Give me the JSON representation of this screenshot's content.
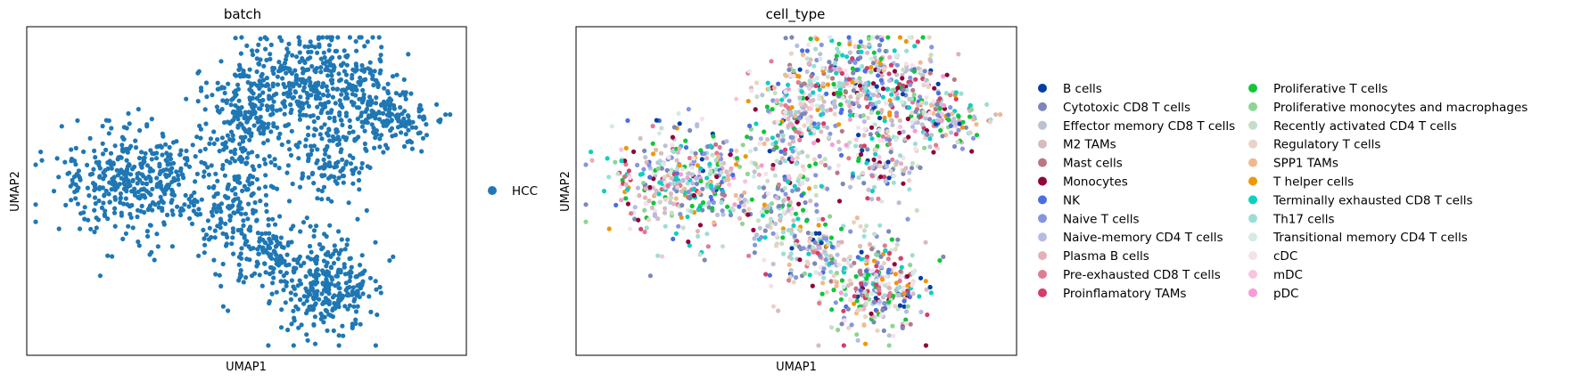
{
  "chart_data": [
    {
      "type": "scatter",
      "title": "batch",
      "xlabel": "UMAP1",
      "ylabel": "UMAP2",
      "grid": false,
      "ticks": false,
      "legend_position": "right",
      "legend": [
        {
          "label": "HCC",
          "color": "#1f77b4"
        }
      ]
    },
    {
      "type": "scatter",
      "title": "cell_type",
      "xlabel": "UMAP1",
      "ylabel": "UMAP2",
      "grid": false,
      "ticks": false,
      "legend_position": "right",
      "legend": [
        {
          "label": "B cells",
          "color": "#023fa5"
        },
        {
          "label": "Cytotoxic CD8 T cells",
          "color": "#7d87b9"
        },
        {
          "label": "Effector memory CD8 T cells",
          "color": "#bec1d4"
        },
        {
          "label": "M2 TAMs",
          "color": "#d6bcc0"
        },
        {
          "label": "Mast cells",
          "color": "#bb7784"
        },
        {
          "label": "Monocytes",
          "color": "#8e063b"
        },
        {
          "label": "NK",
          "color": "#4a6fe3"
        },
        {
          "label": "Naive T cells",
          "color": "#8595e1"
        },
        {
          "label": "Naive-memory CD4 T cells",
          "color": "#b5bbe3"
        },
        {
          "label": "Plasma B cells",
          "color": "#e6afb9"
        },
        {
          "label": "Pre-exhausted CD8 T cells",
          "color": "#e07b91"
        },
        {
          "label": "Proinflamatory TAMs",
          "color": "#d33f6a"
        },
        {
          "label": "Proliferative T cells",
          "color": "#11c638"
        },
        {
          "label": "Proliferative monocytes and macrophages",
          "color": "#8dd593"
        },
        {
          "label": "Recently activated CD4 T cells",
          "color": "#c6dec7"
        },
        {
          "label": "Regulatory T cells",
          "color": "#ead3c6"
        },
        {
          "label": "SPP1 TAMs",
          "color": "#f0b98d"
        },
        {
          "label": "T helper cells",
          "color": "#ef9708"
        },
        {
          "label": "Terminally exhausted CD8 T cells",
          "color": "#0fcfc0"
        },
        {
          "label": "Th17 cells",
          "color": "#9cded6"
        },
        {
          "label": "Transitional memory CD4 T cells",
          "color": "#d5eae7"
        },
        {
          "label": "cDC",
          "color": "#f3e1eb"
        },
        {
          "label": "mDC",
          "color": "#f6c4e1"
        },
        {
          "label": "pDC",
          "color": "#f79cd4"
        }
      ]
    }
  ]
}
